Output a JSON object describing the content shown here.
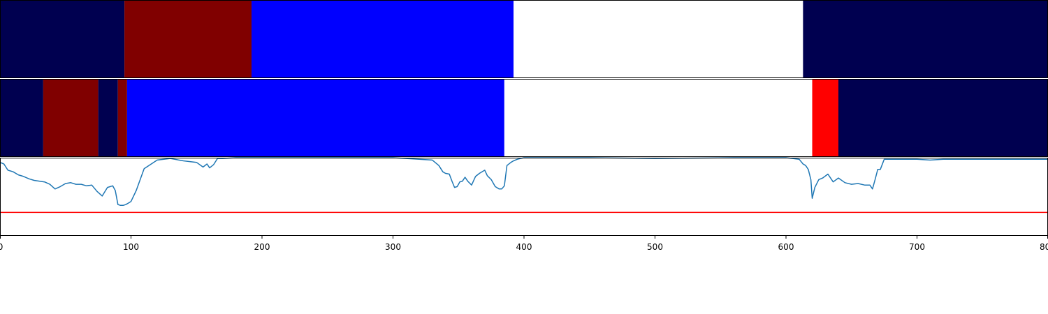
{
  "chart_data": [
    {
      "type": "segment_bar",
      "segments": [
        {
          "start": 0,
          "end": 95,
          "color": "#000050"
        },
        {
          "start": 95,
          "end": 192,
          "color": "#800000"
        },
        {
          "start": 192,
          "end": 392,
          "color": "#0000ff"
        },
        {
          "start": 392,
          "end": 613,
          "color": "#ffffff"
        },
        {
          "start": 613,
          "end": 800,
          "color": "#000050"
        }
      ]
    },
    {
      "type": "segment_bar",
      "segments": [
        {
          "start": 0,
          "end": 33,
          "color": "#000050"
        },
        {
          "start": 33,
          "end": 75,
          "color": "#800000"
        },
        {
          "start": 75,
          "end": 90,
          "color": "#000050"
        },
        {
          "start": 90,
          "end": 97,
          "color": "#800000"
        },
        {
          "start": 97,
          "end": 385,
          "color": "#0000ff"
        },
        {
          "start": 385,
          "end": 620,
          "color": "#ffffff"
        },
        {
          "start": 620,
          "end": 640,
          "color": "#ff0000"
        },
        {
          "start": 640,
          "end": 800,
          "color": "#000050"
        }
      ]
    },
    {
      "type": "line",
      "xlim": [
        0,
        800
      ],
      "ylim": [
        0,
        1
      ],
      "x_ticks": [
        "0",
        "100",
        "200",
        "300",
        "400",
        "500",
        "600",
        "700",
        "800"
      ],
      "threshold": 0.3,
      "threshold_color": "#ff0000",
      "line_color": "#1f77b4",
      "x": [
        0,
        3,
        6,
        10,
        14,
        18,
        22,
        26,
        30,
        34,
        38,
        42,
        46,
        50,
        54,
        58,
        62,
        66,
        70,
        74,
        78,
        82,
        86,
        88,
        90,
        92,
        94,
        96,
        98,
        100,
        104,
        110,
        120,
        130,
        140,
        150,
        155,
        158,
        160,
        163,
        166,
        170,
        180,
        200,
        250,
        300,
        330,
        335,
        338,
        340,
        343,
        345,
        347,
        349,
        351,
        353,
        355,
        357,
        360,
        363,
        366,
        370,
        372,
        375,
        378,
        381,
        383,
        385,
        387,
        390,
        392,
        395,
        400,
        420,
        450,
        500,
        560,
        600,
        610,
        613,
        615,
        617,
        619,
        620,
        622,
        625,
        628,
        632,
        636,
        640,
        645,
        650,
        655,
        660,
        664,
        666,
        668,
        670,
        672,
        675,
        690,
        700,
        710,
        720,
        740,
        760,
        780,
        800
      ],
      "y": [
        0.94,
        0.92,
        0.84,
        0.82,
        0.78,
        0.76,
        0.73,
        0.71,
        0.7,
        0.69,
        0.66,
        0.6,
        0.63,
        0.67,
        0.68,
        0.66,
        0.66,
        0.64,
        0.65,
        0.57,
        0.51,
        0.62,
        0.64,
        0.58,
        0.4,
        0.39,
        0.39,
        0.4,
        0.42,
        0.44,
        0.58,
        0.86,
        0.97,
        0.99,
        0.96,
        0.94,
        0.88,
        0.92,
        0.87,
        0.91,
        0.99,
        0.99,
        1.0,
        1.0,
        1.0,
        1.0,
        0.97,
        0.9,
        0.82,
        0.8,
        0.79,
        0.7,
        0.62,
        0.63,
        0.69,
        0.7,
        0.75,
        0.7,
        0.65,
        0.76,
        0.8,
        0.84,
        0.77,
        0.72,
        0.63,
        0.6,
        0.6,
        0.64,
        0.9,
        0.94,
        0.96,
        0.98,
        1.0,
        1.0,
        1.0,
        0.99,
        1.0,
        1.0,
        0.98,
        0.92,
        0.9,
        0.85,
        0.72,
        0.48,
        0.62,
        0.72,
        0.74,
        0.79,
        0.69,
        0.74,
        0.68,
        0.66,
        0.67,
        0.65,
        0.65,
        0.6,
        0.72,
        0.85,
        0.85,
        0.98,
        0.98,
        0.98,
        0.97,
        0.98,
        0.98,
        0.98,
        0.98,
        0.98
      ]
    }
  ]
}
